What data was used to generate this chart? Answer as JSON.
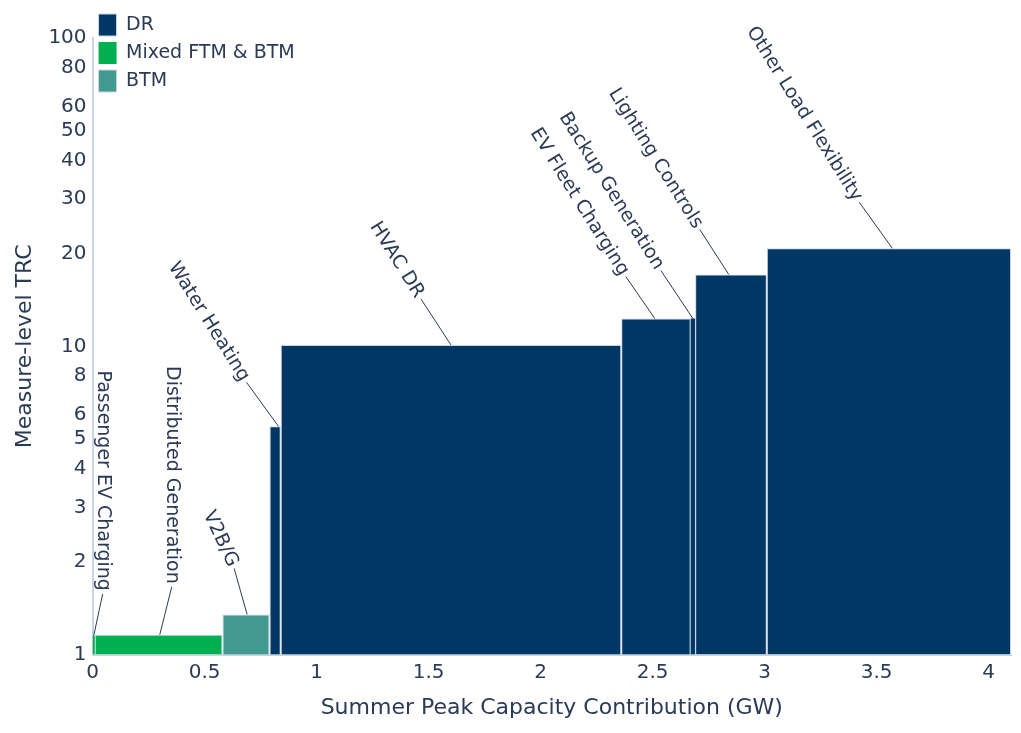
{
  "chart_data": {
    "type": "histogram",
    "xlabel": "Summer Peak Capacity Contribution (GW)",
    "ylabel": "Measure-level TRC",
    "bins": [
      0,
      0.01,
      0.58,
      0.79,
      0.84,
      2.36,
      2.67,
      2.69,
      3.01,
      4.1
    ],
    "series": [
      {
        "name": "DR",
        "color": "#003764",
        "values": [
          null,
          null,
          null,
          5.5,
          10.1,
          12.3,
          12.3,
          17.1,
          20.8
        ]
      },
      {
        "name": "Mixed FTM & BTM",
        "color": "#00b050",
        "values": [
          1.15,
          1.16,
          null,
          null,
          null,
          null,
          null,
          null,
          null
        ]
      },
      {
        "name": "BTM",
        "color": "#41998f",
        "values": [
          null,
          null,
          1.35,
          null,
          null,
          null,
          null,
          null,
          null
        ]
      }
    ],
    "xlim": [
      0,
      4.1
    ],
    "xticks": [
      0,
      0.5,
      1,
      1.5,
      2,
      2.5,
      3,
      3.5,
      4
    ],
    "ylim": [
      1,
      100
    ],
    "yticks": [
      1,
      2,
      3,
      4,
      5,
      6,
      8,
      10,
      20,
      30,
      40,
      50,
      60,
      80,
      100
    ],
    "log": "y",
    "grid": false,
    "legend": "top left",
    "annotations": [
      {
        "text": "Passenger EV Charging",
        "x": 0.005,
        "y": 1.15
      },
      {
        "text": "Distributed Generation",
        "x": 0.3,
        "y": 1.16
      },
      {
        "text": "V2B/G",
        "x": 0.69,
        "y": 1.35
      },
      {
        "text": "Water Heating",
        "x": 0.83,
        "y": 5.5
      },
      {
        "text": "HVAC DR",
        "x": 1.6,
        "y": 10.1
      },
      {
        "text": "EV Fleet Charging",
        "x": 2.51,
        "y": 12.3
      },
      {
        "text": "Backup Generation",
        "x": 2.68,
        "y": 12.3
      },
      {
        "text": "Lighting Controls",
        "x": 2.84,
        "y": 17.1
      },
      {
        "text": "Other Load Flexibility",
        "x": 3.57,
        "y": 20.8
      }
    ]
  }
}
